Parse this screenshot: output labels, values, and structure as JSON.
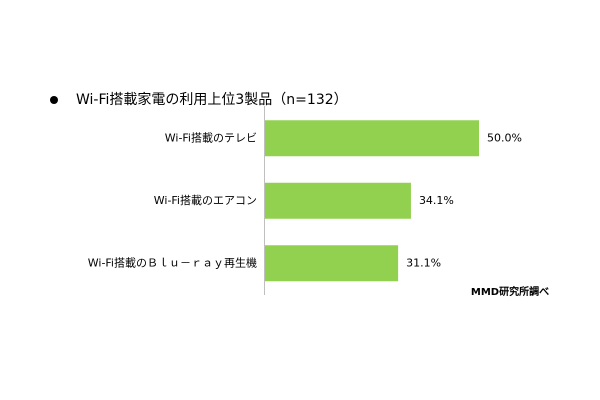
{
  "chart_data": {
    "type": "bar",
    "orientation": "horizontal",
    "title": "Wi-Fi搭載家電の利用上位3製品（n=132）",
    "categories": [
      "Wi-Fi搭載のテレビ",
      "Wi-Fi搭載のエアコン",
      "Wi-Fi搭載のＢｌｕ－ｒａｙ再生機"
    ],
    "values": [
      50.0,
      34.1,
      31.1
    ],
    "value_labels": [
      "50.0%",
      "34.1%",
      "31.1%"
    ],
    "color": "#92d050",
    "source": "MMD研究所調べ"
  }
}
